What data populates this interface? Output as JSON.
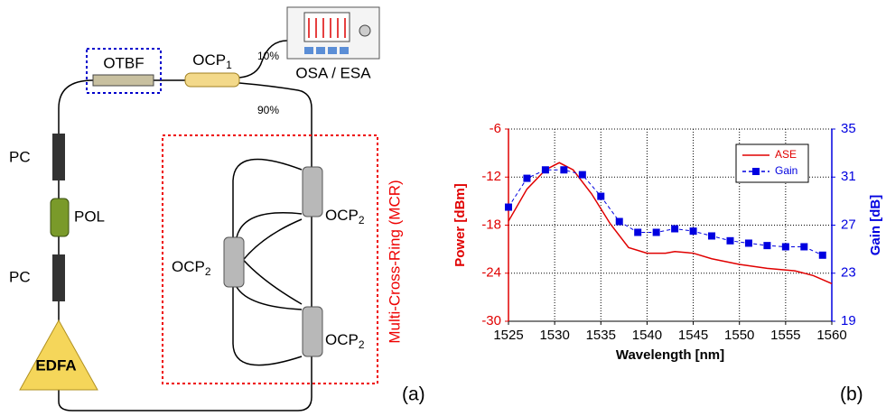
{
  "diagram": {
    "otbf": "OTBF",
    "ocp1": {
      "text": "OCP",
      "sub": "1"
    },
    "split_low": "10%",
    "split_high": "90%",
    "analyzer": "OSA / ESA",
    "pc_top": "PC",
    "pol": "POL",
    "pc_bottom": "PC",
    "edfa": "EDFA",
    "ocp2_top": {
      "text": "OCP",
      "sub": "2"
    },
    "ocp2_left": {
      "text": "OCP",
      "sub": "2"
    },
    "ocp2_bottom": {
      "text": "OCP",
      "sub": "2"
    },
    "ring": "Multi-Cross-Ring (MCR)",
    "panel_a": "(a)",
    "panel_b": "(b)"
  },
  "chart_data": {
    "type": "line",
    "xlabel": "Wavelength [nm]",
    "ylabel": "Power [dBm]",
    "y2label": "Gain [dB]",
    "xlim": [
      1525,
      1560
    ],
    "xticks": [
      1525,
      1530,
      1535,
      1540,
      1545,
      1550,
      1555,
      1560
    ],
    "ylim": [
      -30,
      -6
    ],
    "yticks": [
      -30,
      -24,
      -18,
      -12,
      -6
    ],
    "y2lim": [
      19,
      35
    ],
    "y2ticks": [
      19,
      23,
      27,
      31,
      35
    ],
    "grid": true,
    "legend": "upper right",
    "series": [
      {
        "name": "ASE",
        "color": "#e00000",
        "x": [
          1525,
          1527,
          1529,
          1530.5,
          1532,
          1534,
          1536,
          1538,
          1540,
          1542,
          1543,
          1545,
          1547,
          1550,
          1553,
          1556,
          1558,
          1560
        ],
        "values": [
          -17.5,
          -13.5,
          -11.1,
          -10.2,
          -11.1,
          -14.1,
          -17.8,
          -20.8,
          -21.5,
          -21.5,
          -21.3,
          -21.5,
          -22.2,
          -22.9,
          -23.4,
          -23.7,
          -24.3,
          -25.3
        ]
      },
      {
        "name": "Gain",
        "color": "#0000e0",
        "axis": "y2",
        "x": [
          1525,
          1527,
          1529,
          1531,
          1533,
          1535,
          1537,
          1539,
          1541,
          1543,
          1545,
          1547,
          1549,
          1551,
          1553,
          1555,
          1557,
          1559
        ],
        "values": [
          28.5,
          30.9,
          31.6,
          31.6,
          31.2,
          29.4,
          27.3,
          26.4,
          26.4,
          26.7,
          26.5,
          26.1,
          25.7,
          25.5,
          25.3,
          25.2,
          25.2,
          24.5
        ]
      }
    ]
  }
}
